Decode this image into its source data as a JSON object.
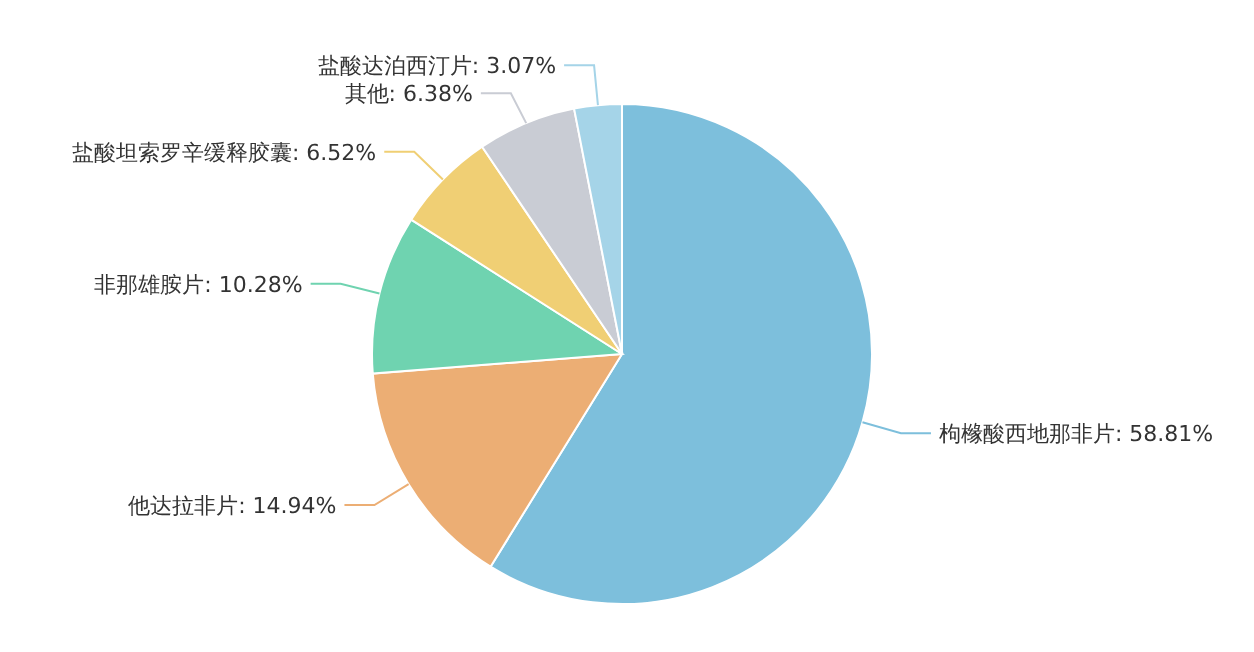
{
  "chart_data": {
    "type": "pie",
    "categories": [
      "枸橼酸西地那非片",
      "他达拉非片",
      "非那雄胺片",
      "盐酸坦索罗辛缓释胶囊",
      "其他",
      "盐酸达泊西汀片"
    ],
    "values": [
      58.81,
      14.94,
      10.28,
      6.52,
      6.38,
      3.07
    ],
    "colors": [
      "#7dbfdc",
      "#ecae74",
      "#6fd3b0",
      "#f0cf74",
      "#c9ccd4",
      "#a5d4e8"
    ],
    "value_labels": [
      "58.81%",
      "14.94%",
      "10.28%",
      "6.52%",
      "6.38%",
      "3.07%"
    ]
  }
}
